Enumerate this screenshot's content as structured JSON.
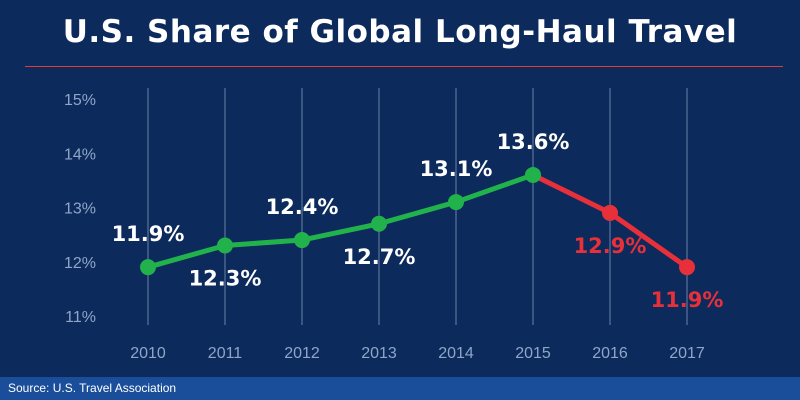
{
  "title": "U.S. Share of Global Long-Haul Travel",
  "source": "Source: U.S. Travel Association",
  "colors": {
    "background": "#0c2a5b",
    "rule": "#e03a3c",
    "gridline": "#8fa6c8",
    "axis_text": "#8fa6c8",
    "growth": "#22b24c",
    "decline": "#e8303a",
    "label_light": "#ffffff",
    "footer": "#1a4e9a"
  },
  "chart_data": {
    "type": "line",
    "title": "U.S. Share of Global Long-Haul Travel",
    "xlabel": "",
    "ylabel": "",
    "x": [
      "2010",
      "2011",
      "2012",
      "2013",
      "2014",
      "2015",
      "2016",
      "2017"
    ],
    "values": [
      11.9,
      12.3,
      12.4,
      12.7,
      13.1,
      13.6,
      12.9,
      11.9
    ],
    "data_labels": [
      "11.9%",
      "12.3%",
      "12.4%",
      "12.7%",
      "13.1%",
      "13.6%",
      "12.9%",
      "11.9%"
    ],
    "yticks": [
      "11%",
      "12%",
      "13%",
      "14%",
      "15%"
    ],
    "ylim": [
      11,
      15
    ],
    "grid": "vertical",
    "legend": "none"
  }
}
